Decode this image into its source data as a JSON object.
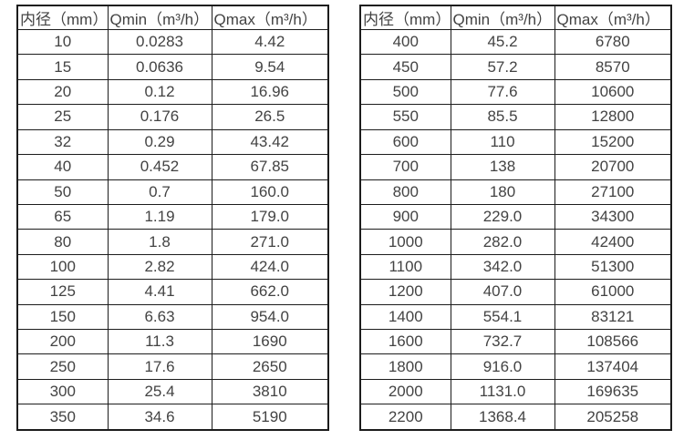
{
  "page": {
    "background": "#ffffff",
    "text_color": "#434343",
    "border_color": "#1c1c1c"
  },
  "tables": [
    {
      "headers": [
        "内径（mm）",
        "Qmin（m³/h）",
        "Qmax（m³/h）"
      ],
      "rows": [
        [
          "10",
          "0.0283",
          "4.42"
        ],
        [
          "15",
          "0.0636",
          "9.54"
        ],
        [
          "20",
          "0.12",
          "16.96"
        ],
        [
          "25",
          "0.176",
          "26.5"
        ],
        [
          "32",
          "0.29",
          "43.42"
        ],
        [
          "40",
          "0.452",
          "67.85"
        ],
        [
          "50",
          "0.7",
          "160.0"
        ],
        [
          "65",
          "1.19",
          "179.0"
        ],
        [
          "80",
          "1.8",
          "271.0"
        ],
        [
          "100",
          "2.82",
          "424.0"
        ],
        [
          "125",
          "4.41",
          "662.0"
        ],
        [
          "150",
          "6.63",
          "954.0"
        ],
        [
          "200",
          "11.3",
          "1690"
        ],
        [
          "250",
          "17.6",
          "2650"
        ],
        [
          "300",
          "25.4",
          "3810"
        ],
        [
          "350",
          "34.6",
          "5190"
        ]
      ]
    },
    {
      "headers": [
        "内径（mm）",
        "Qmin（m³/h）",
        "Qmax（m³/h）"
      ],
      "rows": [
        [
          "400",
          "45.2",
          "6780"
        ],
        [
          "450",
          "57.2",
          "8570"
        ],
        [
          "500",
          "77.6",
          "10600"
        ],
        [
          "550",
          "85.5",
          "12800"
        ],
        [
          "600",
          "110",
          "15200"
        ],
        [
          "700",
          "138",
          "20700"
        ],
        [
          "800",
          "180",
          "27100"
        ],
        [
          "900",
          "229.0",
          "34300"
        ],
        [
          "1000",
          "282.0",
          "42400"
        ],
        [
          "1100",
          "342.0",
          "51300"
        ],
        [
          "1200",
          "407.0",
          "61000"
        ],
        [
          "1400",
          "554.1",
          "83121"
        ],
        [
          "1600",
          "732.7",
          "108566"
        ],
        [
          "1800",
          "916.0",
          "137404"
        ],
        [
          "2000",
          "1131.0",
          "169635"
        ],
        [
          "2200",
          "1368.4",
          "205258"
        ]
      ]
    }
  ]
}
